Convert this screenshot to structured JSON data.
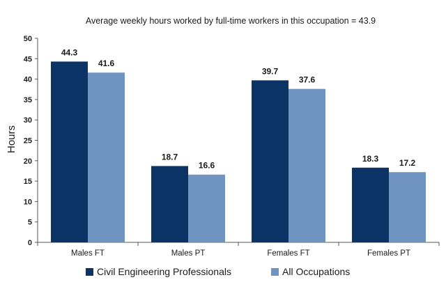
{
  "chart_data": {
    "type": "bar",
    "title": "Average weekly hours worked by full-time workers in this occupation = 43.9",
    "xlabel": "",
    "ylabel": "Hours",
    "ylim": [
      0,
      50
    ],
    "yticks": [
      "0",
      "5",
      "10",
      "15",
      "20",
      "25",
      "30",
      "35",
      "40",
      "45",
      "50"
    ],
    "grid": false,
    "legend_position": "bottom",
    "categories": [
      "Males FT",
      "Males PT",
      "Females FT",
      "Females PT"
    ],
    "series": [
      {
        "name": "Civil Engineering Professionals",
        "color": "#0b3366",
        "values": [
          44.3,
          18.7,
          39.7,
          18.3
        ],
        "labels": [
          "44.3",
          "18.7",
          "39.7",
          "18.3"
        ]
      },
      {
        "name": "All Occupations",
        "color": "#7094c1",
        "values": [
          41.6,
          16.6,
          37.6,
          17.2
        ],
        "labels": [
          "41.6",
          "16.6",
          "37.6",
          "17.2"
        ]
      }
    ]
  }
}
